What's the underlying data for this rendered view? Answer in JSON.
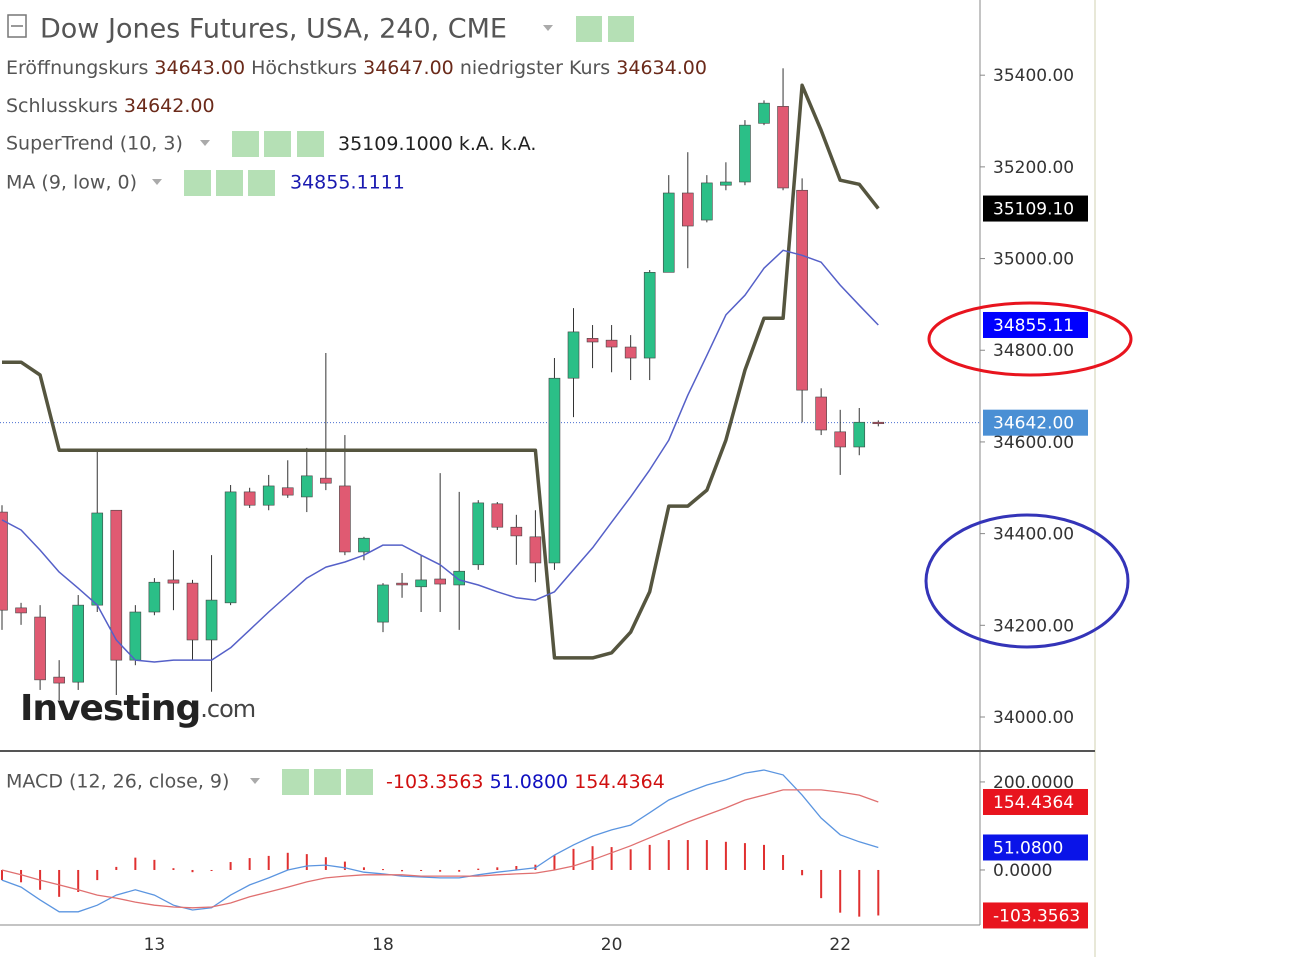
{
  "header": {
    "title": "Dow Jones Futures, USA, 240, CME",
    "ohlc": [
      {
        "label": "Eröffnungskurs",
        "value": "34643.00"
      },
      {
        "label": "Höchstkurs",
        "value": "34647.00"
      },
      {
        "label": "niedrigster Kurs",
        "value": "34634.00"
      }
    ],
    "close": {
      "label": "Schlusskurs",
      "value": "34642.00"
    },
    "supertrend_values": [
      "35109.1000",
      "k.A.",
      "k.A."
    ],
    "ma_value": "34855.1111",
    "macd_name": "MACD (12, 26, close, 9)",
    "macd_values": [
      "-103.3563",
      "51.0800",
      "154.4364"
    ],
    "watermark": "Investing",
    "watermark_suffix": ".com"
  },
  "chart_data": [
    {
      "type": "candlestick",
      "categories": [
        null,
        null,
        null,
        null,
        null,
        null,
        null,
        null,
        "13",
        null,
        null,
        null,
        null,
        null,
        null,
        null,
        null,
        null,
        null,
        null,
        "18",
        null,
        null,
        null,
        null,
        null,
        null,
        null,
        null,
        null,
        null,
        null,
        "20",
        null,
        null,
        null,
        null,
        null,
        null,
        null,
        null,
        null,
        null,
        null,
        "22",
        null,
        null
      ],
      "open": [
        34447,
        34238,
        34218,
        34087,
        34076,
        34244,
        34451,
        34124,
        34229,
        34299,
        34292,
        34168,
        34249,
        34491,
        34462,
        34500,
        34480,
        34521,
        34504,
        34360,
        34207,
        34292,
        34284,
        34301,
        34288,
        34332,
        34465,
        34414,
        34393,
        34336,
        34739,
        34826,
        34822,
        34807,
        34783,
        34970,
        35143,
        35084,
        35160,
        35167,
        35295,
        35332,
        35149,
        34698,
        34622,
        34589,
        34643
      ],
      "high": [
        34462,
        34249,
        34244,
        34124,
        34266,
        34578,
        34451,
        34244,
        34303,
        34364,
        34299,
        34353,
        34506,
        34500,
        34528,
        34560,
        34587,
        34794,
        34615,
        34393,
        34292,
        34314,
        34353,
        34532,
        34491,
        34473,
        34469,
        34441,
        34451,
        34783,
        34892,
        34855,
        34855,
        34833,
        34975,
        35182,
        35232,
        35182,
        35210,
        35302,
        35345,
        35415,
        35175,
        34717,
        34670,
        34674,
        34647
      ],
      "low": [
        34190,
        34201,
        34059,
        34037,
        34059,
        34229,
        34048,
        34113,
        34222,
        34233,
        34124,
        34055,
        34244,
        34456,
        34451,
        34478,
        34447,
        34495,
        34353,
        34342,
        34185,
        34260,
        34229,
        34229,
        34190,
        34321,
        34408,
        34332,
        34294,
        34321,
        34654,
        34761,
        34752,
        34735,
        34735,
        34970,
        34979,
        35079,
        35149,
        35160,
        35291,
        35149,
        34643,
        34615,
        34528,
        34571,
        34634
      ],
      "close": [
        34233,
        34227,
        34081,
        34074,
        34244,
        34445,
        34124,
        34229,
        34294,
        34292,
        34168,
        34255,
        34491,
        34462,
        34504,
        34484,
        34526,
        34510,
        34360,
        34390,
        34288,
        34288,
        34299,
        34290,
        34318,
        34467,
        34414,
        34395,
        34336,
        34739,
        34840,
        34818,
        34807,
        34783,
        34970,
        35143,
        35071,
        35165,
        35167,
        35291,
        35339,
        35154,
        34713,
        34626,
        34589,
        34643,
        34642
      ],
      "up_color": "#2bbf87",
      "down_color": "#e05a72",
      "series": [
        {
          "name": "SuperTrend (10, 3)",
          "color": "#55553f",
          "width": 3.5,
          "values": [
            34774,
            34774,
            34746,
            34582,
            34582,
            34582,
            34582,
            34582,
            34582,
            34582,
            34582,
            34582,
            34582,
            34582,
            34582,
            34582,
            34582,
            34582,
            34582,
            34582,
            34582,
            34582,
            34582,
            34582,
            34582,
            34582,
            34582,
            34582,
            34582,
            34129,
            34129,
            34129,
            34140,
            34185,
            34273,
            34460,
            34460,
            34495,
            34604,
            34757,
            34870,
            34870,
            35378,
            35280,
            35171,
            35162,
            35109.1
          ]
        },
        {
          "name": "MA (9, low, 0)",
          "color": "#5560c8",
          "width": 1.5,
          "values": [
            34430,
            34408,
            34364,
            34316,
            34281,
            34244,
            34168,
            34124,
            34120,
            34124,
            34124,
            34124,
            34151,
            34190,
            34229,
            34266,
            34303,
            34327,
            34338,
            34353,
            34375,
            34375,
            34353,
            34332,
            34299,
            34288,
            34273,
            34260,
            34255,
            34273,
            34321,
            34369,
            34425,
            34480,
            34539,
            34604,
            34702,
            34789,
            34877,
            34920,
            34979,
            35018,
            35007,
            34992,
            34942,
            34898,
            34855.1111
          ]
        }
      ],
      "ylim": [
        33928,
        35564
      ],
      "yticks": [
        {
          "value": 34000,
          "label": "34000.00"
        },
        {
          "value": 34200,
          "label": "34200.00"
        },
        {
          "value": 34400,
          "label": "34400.00"
        },
        {
          "value": 34600,
          "label": "34600.00"
        },
        {
          "value": 34800,
          "label": "34800.00"
        },
        {
          "value": 35000,
          "label": "35000.00"
        },
        {
          "value": 35200,
          "label": "35200.00"
        },
        {
          "value": 35400,
          "label": "35400.00"
        }
      ],
      "current_price": 34642,
      "current_line_color": "#4a6fd0",
      "price_tags": [
        {
          "value": 35109.1,
          "label": "35109.10",
          "color": "#000000"
        },
        {
          "value": 34855.1111,
          "label": "34855.11",
          "color": "#0000ff"
        },
        {
          "value": 34642,
          "label": "34642.00",
          "color": "#4a8fd4"
        }
      ]
    },
    {
      "type": "macd",
      "series": [
        {
          "color": "#5b95e0",
          "values": [
            -23,
            -39,
            -68,
            -95,
            -95,
            -80,
            -57,
            -45,
            -57,
            -80,
            -91,
            -86,
            -57,
            -34,
            -18,
            0,
            9,
            11,
            5,
            -5,
            -9,
            -14,
            -16,
            -18,
            -18,
            -11,
            -5,
            0,
            5,
            34,
            57,
            77,
            91,
            102,
            130,
            159,
            177,
            193,
            205,
            220,
            227,
            216,
            170,
            118,
            80,
            64,
            51.08
          ]
        },
        {
          "color": "#e07070",
          "values": [
            0,
            -11,
            -23,
            -34,
            -45,
            -57,
            -64,
            -73,
            -80,
            -84,
            -86,
            -84,
            -75,
            -61,
            -50,
            -39,
            -27,
            -18,
            -14,
            -11,
            -11,
            -11,
            -14,
            -14,
            -14,
            -14,
            -11,
            -9,
            -7,
            0,
            9,
            23,
            39,
            55,
            73,
            91,
            109,
            125,
            141,
            159,
            170,
            182,
            182,
            182,
            177,
            170,
            154.4364
          ]
        }
      ],
      "histogram": {
        "color": "#e03030",
        "values": [
          -23,
          -28,
          -45,
          -61,
          -50,
          -23,
          7,
          28,
          23,
          4,
          -5,
          -2,
          18,
          27,
          32,
          39,
          36,
          29,
          19,
          6,
          2,
          -3,
          -2,
          -4,
          -4,
          3,
          6,
          9,
          12,
          34,
          48,
          54,
          52,
          47,
          57,
          68,
          68,
          68,
          64,
          61,
          57,
          34,
          -12,
          -64,
          -97,
          -106,
          -103.3563
        ]
      },
      "ylim": [
        -125,
        268
      ],
      "yticks": [
        {
          "value": 0,
          "label": "0.0000"
        },
        {
          "value": 200,
          "label": "200.0000"
        }
      ],
      "tags": [
        {
          "value": 154.4364,
          "label": "154.4364",
          "color": "#e8141e"
        },
        {
          "value": 51.08,
          "label": "51.0800",
          "color": "#0a14e8"
        },
        {
          "value": -103.3563,
          "label": "-103.3563",
          "color": "#e8141e"
        }
      ]
    }
  ]
}
